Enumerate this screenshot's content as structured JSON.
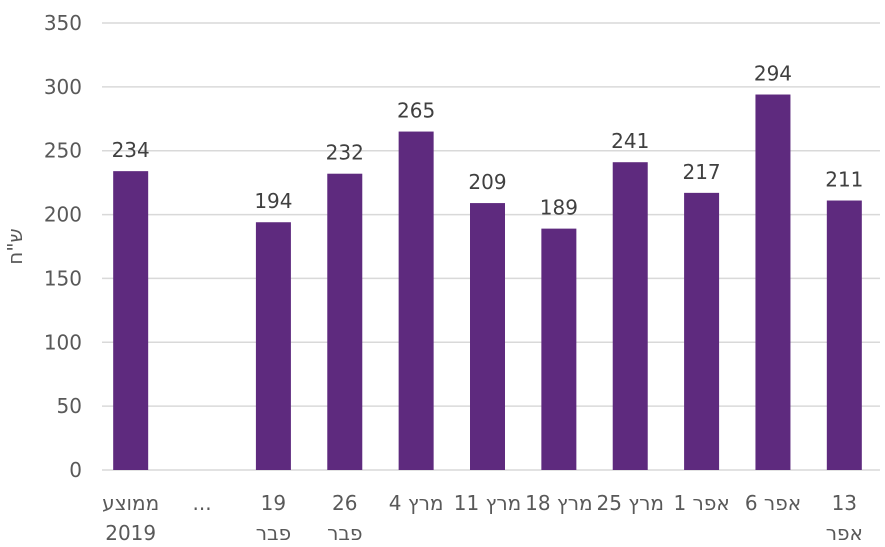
{
  "chart_data": {
    "type": "bar",
    "title": "",
    "xlabel": "",
    "ylabel": "ש\"ח",
    "ylim": [
      0,
      350
    ],
    "yticks": [
      0,
      50,
      100,
      150,
      200,
      250,
      300,
      350
    ],
    "grid": true,
    "legend": "none",
    "bar_color": "#5e2a7e",
    "categories": [
      [
        "ממוצע",
        "2019"
      ],
      [
        "..."
      ],
      [
        "19",
        "פבר"
      ],
      [
        "26",
        "פבר"
      ],
      [
        "4 מרץ"
      ],
      [
        "11 מרץ"
      ],
      [
        "18 מרץ"
      ],
      [
        "25 מרץ"
      ],
      [
        "1 אפר"
      ],
      [
        "6 אפר"
      ],
      [
        "13",
        "אפר"
      ]
    ],
    "values": [
      234,
      null,
      194,
      232,
      265,
      209,
      189,
      241,
      217,
      294,
      211
    ]
  }
}
